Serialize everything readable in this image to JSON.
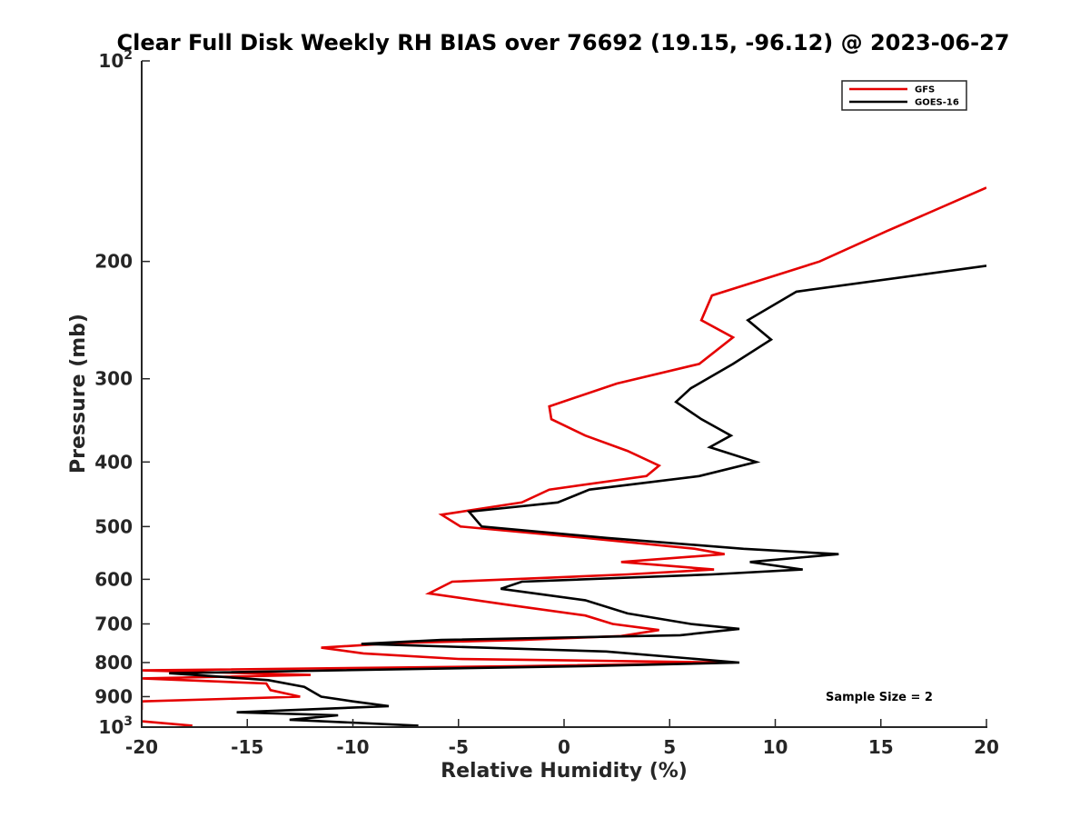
{
  "chart_data": {
    "type": "line",
    "title": "Clear Full Disk Weekly RH BIAS over 76692 (19.15, -96.12) @ 2023-06-27",
    "xlabel": "Relative Humidity (%)",
    "ylabel": "Pressure (mb)",
    "xlim": [
      -20,
      20
    ],
    "ylim": [
      100,
      1000
    ],
    "yscale": "log",
    "yreversed": true,
    "x_ticks": [
      -20,
      -15,
      -10,
      -5,
      0,
      5,
      10,
      15,
      20
    ],
    "x_tick_labels": [
      "-20",
      "-15",
      "-10",
      "-5",
      "0",
      "5",
      "10",
      "15",
      "20"
    ],
    "y_ticks": [
      {
        "value": 100,
        "base": "10",
        "exp": "2"
      },
      {
        "value": 200,
        "label": "200"
      },
      {
        "value": 300,
        "label": "300"
      },
      {
        "value": 400,
        "label": "400"
      },
      {
        "value": 500,
        "label": "500"
      },
      {
        "value": 600,
        "label": "600"
      },
      {
        "value": 700,
        "label": "700"
      },
      {
        "value": 800,
        "label": "800"
      },
      {
        "value": 900,
        "label": "900"
      },
      {
        "value": 1000,
        "base": "10",
        "exp": "3"
      }
    ],
    "legend": {
      "position": "top-right",
      "entries": [
        "GFS",
        "GOES-16"
      ]
    },
    "annotation": "Sample Size = 2",
    "series": [
      {
        "name": "GFS",
        "color": "#e50000",
        "points": [
          [
            20.0,
            155
          ],
          [
            15.3,
            180
          ],
          [
            12.1,
            200
          ],
          [
            7.0,
            225
          ],
          [
            6.5,
            245
          ],
          [
            8.0,
            260
          ],
          [
            6.4,
            285
          ],
          [
            2.5,
            305
          ],
          [
            -0.7,
            330
          ],
          [
            -0.6,
            345
          ],
          [
            1.0,
            365
          ],
          [
            3.0,
            385
          ],
          [
            4.5,
            405
          ],
          [
            3.9,
            420
          ],
          [
            -0.7,
            440
          ],
          [
            -2.0,
            460
          ],
          [
            -5.8,
            480
          ],
          [
            -4.9,
            500
          ],
          [
            1.0,
            520
          ],
          [
            6.2,
            540
          ],
          [
            7.6,
            550
          ],
          [
            2.7,
            565
          ],
          [
            7.1,
            580
          ],
          [
            3.0,
            590
          ],
          [
            -5.3,
            605
          ],
          [
            -6.4,
            630
          ],
          [
            -2.7,
            655
          ],
          [
            1.0,
            680
          ],
          [
            2.3,
            700
          ],
          [
            4.5,
            715
          ],
          [
            2.7,
            730
          ],
          [
            -2.0,
            740
          ],
          [
            -8.0,
            748
          ],
          [
            -11.5,
            760
          ],
          [
            -9.5,
            775
          ],
          [
            -5.0,
            790
          ],
          [
            8.0,
            800
          ],
          [
            -2.0,
            810
          ],
          [
            -20.0,
            822
          ],
          [
            -12.0,
            835
          ],
          [
            -20.0,
            845
          ],
          [
            -14.1,
            860
          ],
          [
            -13.9,
            880
          ],
          [
            -12.5,
            900
          ],
          [
            -20.0,
            915
          ],
          [
            -20.0,
            940
          ],
          [
            -20.5,
            960
          ],
          [
            -20.0,
            980
          ],
          [
            -17.6,
            995
          ]
        ]
      },
      {
        "name": "GOES-16",
        "color": "#000000",
        "points": [
          [
            20.0,
            203
          ],
          [
            11.0,
            222
          ],
          [
            8.7,
            245
          ],
          [
            9.8,
            262
          ],
          [
            8.0,
            285
          ],
          [
            6.0,
            310
          ],
          [
            5.3,
            325
          ],
          [
            6.5,
            345
          ],
          [
            7.9,
            365
          ],
          [
            6.9,
            380
          ],
          [
            9.1,
            400
          ],
          [
            6.4,
            420
          ],
          [
            1.2,
            440
          ],
          [
            -0.3,
            460
          ],
          [
            -4.5,
            475
          ],
          [
            -3.9,
            500
          ],
          [
            2.0,
            520
          ],
          [
            8.5,
            540
          ],
          [
            13.0,
            550
          ],
          [
            8.8,
            565
          ],
          [
            11.3,
            580
          ],
          [
            7.0,
            590
          ],
          [
            -2.0,
            605
          ],
          [
            -3.0,
            620
          ],
          [
            1.0,
            645
          ],
          [
            3.0,
            675
          ],
          [
            6.0,
            700
          ],
          [
            8.3,
            712
          ],
          [
            5.5,
            728
          ],
          [
            -5.8,
            740
          ],
          [
            -9.6,
            750
          ],
          [
            2.0,
            770
          ],
          [
            8.3,
            800
          ],
          [
            1.0,
            810
          ],
          [
            -18.7,
            830
          ],
          [
            -14.0,
            850
          ],
          [
            -12.3,
            870
          ],
          [
            -11.5,
            900
          ],
          [
            -10.0,
            915
          ],
          [
            -8.3,
            930
          ],
          [
            -15.5,
            950
          ],
          [
            -10.7,
            960
          ],
          [
            -13.0,
            975
          ],
          [
            -6.9,
            995
          ]
        ]
      }
    ]
  }
}
